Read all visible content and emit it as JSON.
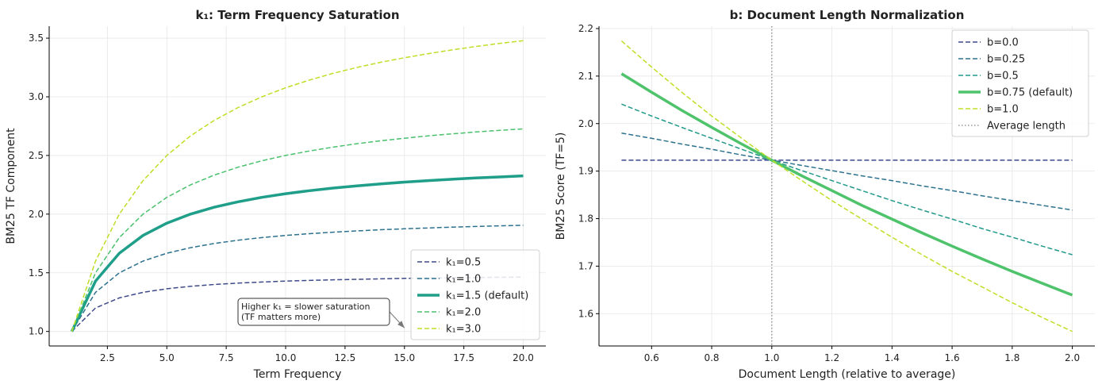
{
  "chart_data": [
    {
      "type": "line",
      "title": "k₁: Term Frequency Saturation",
      "xlabel": "Term Frequency",
      "ylabel": "BM25 TF Component",
      "xlim": [
        0.05,
        20.95
      ],
      "ylim": [
        0.876,
        3.602
      ],
      "xticks": [
        2.5,
        5.0,
        7.5,
        10.0,
        12.5,
        15.0,
        17.5,
        20.0
      ],
      "xtick_labels": [
        "2.5",
        "5.0",
        "7.5",
        "10.0",
        "12.5",
        "15.0",
        "17.5",
        "20.0"
      ],
      "yticks": [
        1.0,
        1.5,
        2.0,
        2.5,
        3.0,
        3.5
      ],
      "ytick_labels": [
        "1.0",
        "1.5",
        "2.0",
        "2.5",
        "3.0",
        "3.5"
      ],
      "grid": true,
      "legend_position": "lower-right",
      "x": [
        1,
        2,
        3,
        4,
        5,
        6,
        7,
        8,
        9,
        10,
        11,
        12,
        13,
        14,
        15,
        16,
        17,
        18,
        19,
        20
      ],
      "series": [
        {
          "name": "k₁=0.5",
          "color": "#3e4a89",
          "style": "dashed",
          "values": [
            1.0,
            1.2,
            1.286,
            1.333,
            1.364,
            1.385,
            1.4,
            1.412,
            1.421,
            1.429,
            1.435,
            1.44,
            1.444,
            1.448,
            1.452,
            1.455,
            1.457,
            1.459,
            1.462,
            1.463
          ]
        },
        {
          "name": "k₁=1.0",
          "color": "#2c718e",
          "style": "dashed",
          "values": [
            1.0,
            1.333,
            1.5,
            1.6,
            1.667,
            1.714,
            1.75,
            1.778,
            1.8,
            1.818,
            1.833,
            1.846,
            1.857,
            1.867,
            1.875,
            1.882,
            1.889,
            1.895,
            1.9,
            1.905
          ]
        },
        {
          "name": "k₁=1.5 (default)",
          "color": "#1f9e89",
          "style": "solid",
          "values": [
            1.0,
            1.429,
            1.667,
            1.818,
            1.923,
            2.0,
            2.059,
            2.105,
            2.143,
            2.174,
            2.2,
            2.222,
            2.241,
            2.258,
            2.273,
            2.286,
            2.297,
            2.308,
            2.317,
            2.326
          ]
        },
        {
          "name": "k₁=2.0",
          "color": "#4ac16d",
          "style": "dashed",
          "values": [
            1.0,
            1.5,
            1.8,
            2.0,
            2.143,
            2.25,
            2.333,
            2.4,
            2.455,
            2.5,
            2.538,
            2.571,
            2.6,
            2.625,
            2.647,
            2.667,
            2.684,
            2.7,
            2.714,
            2.727
          ]
        },
        {
          "name": "k₁=3.0",
          "color": "#bddf26",
          "style": "dashed",
          "values": [
            1.0,
            1.6,
            2.0,
            2.286,
            2.5,
            2.667,
            2.8,
            2.909,
            3.0,
            3.077,
            3.143,
            3.2,
            3.25,
            3.294,
            3.333,
            3.368,
            3.4,
            3.429,
            3.455,
            3.478
          ]
        }
      ],
      "annotations": [
        {
          "text_lines": [
            "Higher k₁ = slower saturation",
            "(TF matters more)"
          ],
          "points_to": [
            15.0,
            1.03
          ]
        }
      ]
    },
    {
      "type": "line",
      "title": "b: Document Length Normalization",
      "xlabel": "Document Length (relative to average)",
      "ylabel": "BM25 Score (TF=5)",
      "xlim": [
        0.425,
        2.075
      ],
      "ylim": [
        1.532,
        2.205
      ],
      "xticks": [
        0.6,
        0.8,
        1.0,
        1.2,
        1.4,
        1.6,
        1.8,
        2.0
      ],
      "xtick_labels": [
        "0.6",
        "0.8",
        "1.0",
        "1.2",
        "1.4",
        "1.6",
        "1.8",
        "2.0"
      ],
      "yticks": [
        1.6,
        1.7,
        1.8,
        1.9,
        2.0,
        2.1,
        2.2
      ],
      "ytick_labels": [
        "1.6",
        "1.7",
        "1.8",
        "1.9",
        "2.0",
        "2.1",
        "2.2"
      ],
      "grid": true,
      "legend_position": "top-right",
      "x": [
        0.5,
        0.6,
        0.7,
        0.8,
        0.9,
        1.0,
        1.1,
        1.2,
        1.3,
        1.4,
        1.5,
        1.6,
        1.7,
        1.8,
        1.9,
        2.0
      ],
      "series": [
        {
          "name": "b=0.0",
          "color": "#3b4a8c",
          "style": "dashed",
          "values": [
            1.923,
            1.923,
            1.923,
            1.923,
            1.923,
            1.923,
            1.923,
            1.923,
            1.923,
            1.923,
            1.923,
            1.923,
            1.923,
            1.923,
            1.923,
            1.923
          ]
        },
        {
          "name": "b=0.25",
          "color": "#2c718e",
          "style": "dashed",
          "values": [
            1.98,
            1.969,
            1.957,
            1.946,
            1.934,
            1.923,
            1.912,
            1.901,
            1.89,
            1.88,
            1.869,
            1.859,
            1.848,
            1.838,
            1.828,
            1.818
          ]
        },
        {
          "name": "b=0.5",
          "color": "#21998a",
          "style": "dashed",
          "values": [
            2.041,
            2.016,
            1.992,
            1.969,
            1.946,
            1.923,
            1.901,
            1.88,
            1.859,
            1.838,
            1.818,
            1.799,
            1.779,
            1.761,
            1.742,
            1.724
          ]
        },
        {
          "name": "b=0.75 (default)",
          "color": "#4ec36b",
          "style": "solid",
          "values": [
            2.105,
            2.066,
            2.028,
            1.992,
            1.957,
            1.923,
            1.89,
            1.859,
            1.828,
            1.799,
            1.77,
            1.742,
            1.715,
            1.689,
            1.664,
            1.639
          ]
        },
        {
          "name": "b=1.0",
          "color": "#bddf26",
          "style": "dashed",
          "values": [
            2.174,
            2.119,
            2.066,
            2.016,
            1.969,
            1.923,
            1.88,
            1.838,
            1.799,
            1.761,
            1.724,
            1.689,
            1.656,
            1.623,
            1.592,
            1.5625
          ]
        }
      ],
      "reference_lines": [
        {
          "name": "Average length",
          "orientation": "vertical",
          "x": 1.0,
          "color": "#999999",
          "style": "dotted"
        }
      ]
    }
  ]
}
